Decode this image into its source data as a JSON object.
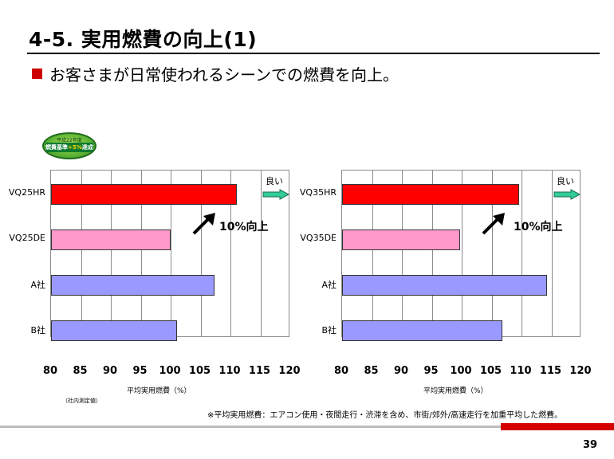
{
  "slide": {
    "title": "4-5. 実用燃費の向上(1)",
    "subtitle": "お客さまが日常使われるシーンでの燃費を向上。",
    "colors": {
      "accent": "#cc0000",
      "footer_red": "#d40000",
      "footer_grey": "#bdbdbd"
    },
    "badge": {
      "top": "平成22年度",
      "main_pre": "燃費基準",
      "main_hl": "+5%",
      "main_post": "達成車"
    },
    "note": "（社内測定値）",
    "footnote": "※平均実用燃費：エアコン使用・夜間走行・渋滞を含め、市街/郊外/高速走行を加重平均した燃費。",
    "page_number": "39"
  },
  "chart_data": [
    {
      "type": "bar",
      "orientation": "horizontal",
      "categories": [
        "VQ25HR",
        "VQ25DE",
        "A社",
        "B社"
      ],
      "values": [
        111,
        100,
        107.3,
        101.1
      ],
      "colors": [
        "#ff0000",
        "#ff99cc",
        "#9999ff",
        "#9999ff"
      ],
      "xlim": [
        80,
        120
      ],
      "xticks": [
        "80",
        "85",
        "90",
        "95",
        "100",
        "105",
        "110",
        "115",
        "120"
      ],
      "xlabel": "平均実用燃費（%）",
      "annotation_good": "良い",
      "annotation_improve": "10%向上"
    },
    {
      "type": "bar",
      "orientation": "horizontal",
      "categories": [
        "VQ35HR",
        "VQ35DE",
        "A社",
        "B社"
      ],
      "values": [
        109.6,
        99.7,
        114.2,
        106.8
      ],
      "colors": [
        "#ff0000",
        "#ff99cc",
        "#9999ff",
        "#9999ff"
      ],
      "xlim": [
        80,
        120
      ],
      "xticks": [
        "80",
        "85",
        "90",
        "95",
        "100",
        "105",
        "110",
        "115",
        "120"
      ],
      "xlabel": "平均実用燃費（%）",
      "annotation_good": "良い",
      "annotation_improve": "10%向上"
    }
  ]
}
